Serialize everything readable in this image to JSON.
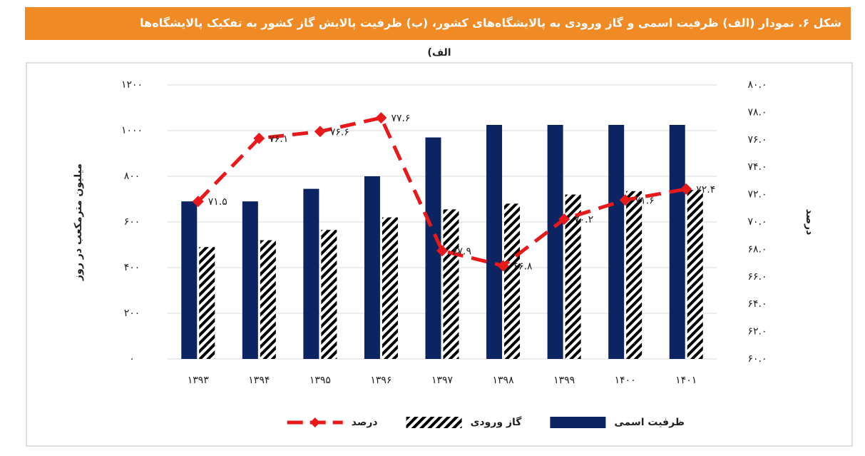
{
  "header": {
    "title": "شکل ۶. نمودار (الف) ظرفیت اسمی و گاز ورودی به پالایشگاه‌های کشور، (ب) ظرفیت پالایش گاز کشور به تفکیک پالایشگاه‌ها"
  },
  "chart_data": {
    "type": "bar",
    "title": "الف)",
    "y_label": "میلیون مترمکعب در روز",
    "y2_label": "درصد",
    "categories": [
      "۱۳۹۳",
      "۱۳۹۴",
      "۱۳۹۵",
      "۱۳۹۶",
      "۱۳۹۷",
      "۱۳۹۸",
      "۱۳۹۹",
      "۱۴۰۰",
      "۱۴۰۱"
    ],
    "series": [
      {
        "name": "ظرفیت اسمی",
        "type": "bar",
        "color": "#0d2463",
        "values": [
          690,
          690,
          745,
          800,
          970,
          1025,
          1025,
          1025,
          1025
        ]
      },
      {
        "name": "گاز ورودی",
        "type": "bar",
        "pattern": "hatch",
        "color": "#000000",
        "values": [
          490,
          520,
          565,
          620,
          655,
          680,
          720,
          735,
          740
        ]
      },
      {
        "name": "درصد",
        "type": "line",
        "axis": "y2",
        "color": "#e8191b",
        "values": [
          71.5,
          76.1,
          76.6,
          77.6,
          67.9,
          66.8,
          70.2,
          71.6,
          72.4
        ],
        "value_labels": [
          "۷۱.۵",
          "۷۶.۱",
          "۷۶.۶",
          "۷۷.۶",
          "۶۷.۹",
          "۶۶.۸",
          "۷۰.۲",
          "۷۱.۶",
          "۷۲.۴"
        ]
      }
    ],
    "ylim": [
      0,
      1200
    ],
    "yticks": [
      {
        "value": 0,
        "label": "۰"
      },
      {
        "value": 200,
        "label": "۲۰۰"
      },
      {
        "value": 400,
        "label": "۴۰۰"
      },
      {
        "value": 600,
        "label": "۶۰۰"
      },
      {
        "value": 800,
        "label": "۸۰۰"
      },
      {
        "value": 1000,
        "label": "۱۰۰۰"
      },
      {
        "value": 1200,
        "label": "۱۲۰۰"
      }
    ],
    "y2lim": [
      60,
      80
    ],
    "y2ticks": [
      {
        "value": 60,
        "label": "۶۰.۰"
      },
      {
        "value": 62,
        "label": "۶۲.۰"
      },
      {
        "value": 64,
        "label": "۶۴.۰"
      },
      {
        "value": 66,
        "label": "۶۶.۰"
      },
      {
        "value": 68,
        "label": "۶۸.۰"
      },
      {
        "value": 70,
        "label": "۷۰.۰"
      },
      {
        "value": 72,
        "label": "۷۲.۰"
      },
      {
        "value": 74,
        "label": "۷۴.۰"
      },
      {
        "value": 76,
        "label": "۷۶.۰"
      },
      {
        "value": 78,
        "label": "۷۸.۰"
      },
      {
        "value": 80,
        "label": "۸۰.۰"
      }
    ],
    "grid": true,
    "legend": "bottom"
  }
}
